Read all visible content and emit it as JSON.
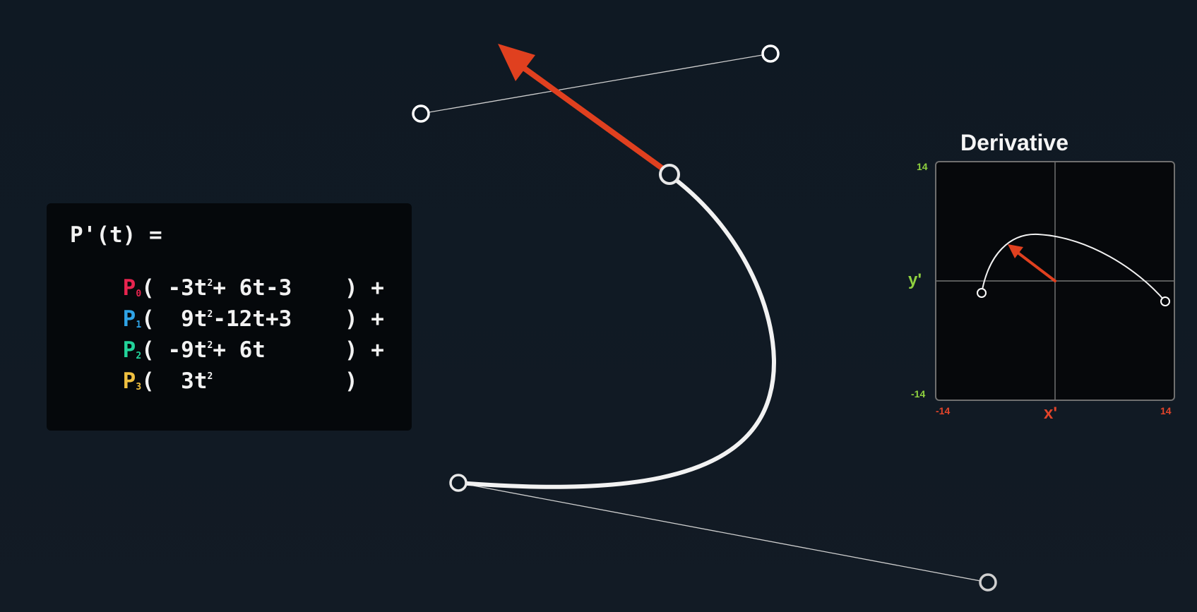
{
  "equation": {
    "lhs": "P'(t) =",
    "terms": [
      {
        "point": "P",
        "sub": "0",
        "color": "#e8244f",
        "open": "( ",
        "c1": "-3t",
        "sup": "2",
        "rest": "+ 6t-3",
        "close": "    ) +"
      },
      {
        "point": "P",
        "sub": "1",
        "color": "#2fa3e6",
        "open": "(  ",
        "c1": "9t",
        "sup": "2",
        "rest": "-12t+3",
        "close": "    ) +"
      },
      {
        "point": "P",
        "sub": "2",
        "color": "#22d39a",
        "open": "( ",
        "c1": "-9t",
        "sup": "2",
        "rest": "+ 6t",
        "close": "      ) +"
      },
      {
        "point": "P",
        "sub": "3",
        "color": "#f0c040",
        "open": "(  ",
        "c1": "3t",
        "sup": "2",
        "rest": "",
        "close": "          )"
      }
    ]
  },
  "derivative_panel": {
    "title": "Derivative",
    "x_axis_label": "x'",
    "y_axis_label": "y'",
    "x_min_label": "-14",
    "x_max_label": "14",
    "y_min_label": "-14",
    "y_max_label": "14",
    "x_axis_color": "#e2442a",
    "y_axis_color": "#8fd13f"
  },
  "colors": {
    "curve": "#f2f2f2",
    "handle_line": "#cfcfcf",
    "tangent_arrow": "#e0401f",
    "background": "#0f1923"
  }
}
